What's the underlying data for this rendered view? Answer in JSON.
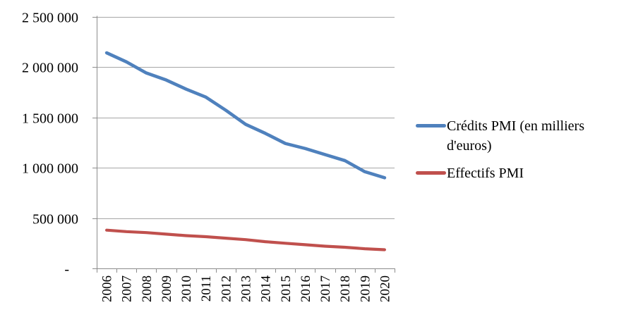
{
  "chart_data": {
    "type": "line",
    "title": "",
    "xlabel": "",
    "ylabel": "",
    "categories": [
      "2006",
      "2007",
      "2008",
      "2009",
      "2010",
      "2011",
      "2012",
      "2013",
      "2014",
      "2015",
      "2016",
      "2017",
      "2018",
      "2019",
      "2020"
    ],
    "series": [
      {
        "name": "Crédits PMI (en milliers d'euros)",
        "color": "#4F81BD",
        "values": [
          2140000,
          2050000,
          1940000,
          1870000,
          1780000,
          1700000,
          1570000,
          1430000,
          1340000,
          1240000,
          1190000,
          1130000,
          1070000,
          960000,
          900000
        ]
      },
      {
        "name": "Effectifs PMI",
        "color": "#C0504D",
        "values": [
          380000,
          365000,
          355000,
          340000,
          325000,
          315000,
          300000,
          285000,
          265000,
          250000,
          235000,
          220000,
          210000,
          195000,
          185000
        ]
      }
    ],
    "ylim": [
      0,
      2500000
    ],
    "y_ticks": [
      {
        "value": 0,
        "label": "-"
      },
      {
        "value": 500000,
        "label": "500 000"
      },
      {
        "value": 1000000,
        "label": "1 000 000"
      },
      {
        "value": 1500000,
        "label": "1 500 000"
      },
      {
        "value": 2000000,
        "label": "2 000 000"
      },
      {
        "value": 2500000,
        "label": "2 500 000"
      }
    ],
    "grid": true,
    "legend_position": "right",
    "gridline_color": "#A6A6A6",
    "axis_color": "#8C8C8C",
    "text_color": "#000000"
  }
}
